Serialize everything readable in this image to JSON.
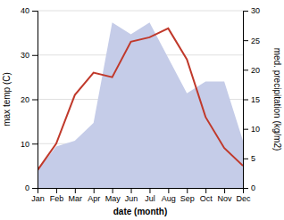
{
  "chart_data": {
    "type": "line",
    "categories": [
      "Jan",
      "Feb",
      "Mar",
      "Apr",
      "May",
      "Jun",
      "Jul",
      "Aug",
      "Sep",
      "Oct",
      "Nov",
      "Dec"
    ],
    "series": [
      {
        "type": "area",
        "axis": "y2",
        "color": "#c5cce8",
        "values": [
          3,
          7,
          8,
          11,
          28,
          26,
          28,
          22,
          16,
          18,
          18,
          8
        ]
      },
      {
        "type": "line",
        "color": "#c0392b",
        "values": [
          4,
          10,
          21,
          26,
          25,
          33,
          34,
          36,
          29,
          16,
          9,
          5
        ]
      }
    ],
    "xlabel": "date (month)",
    "ylabel": "max temp (C)",
    "y2label": "med. precipitation (kg/m2)",
    "ylim": [
      0,
      40
    ],
    "yticks": [
      0,
      10,
      20,
      30,
      40
    ],
    "y2lim": [
      0,
      30
    ],
    "y2ticks": [
      0,
      5,
      10,
      15,
      20,
      25,
      30
    ],
    "grid": true
  }
}
